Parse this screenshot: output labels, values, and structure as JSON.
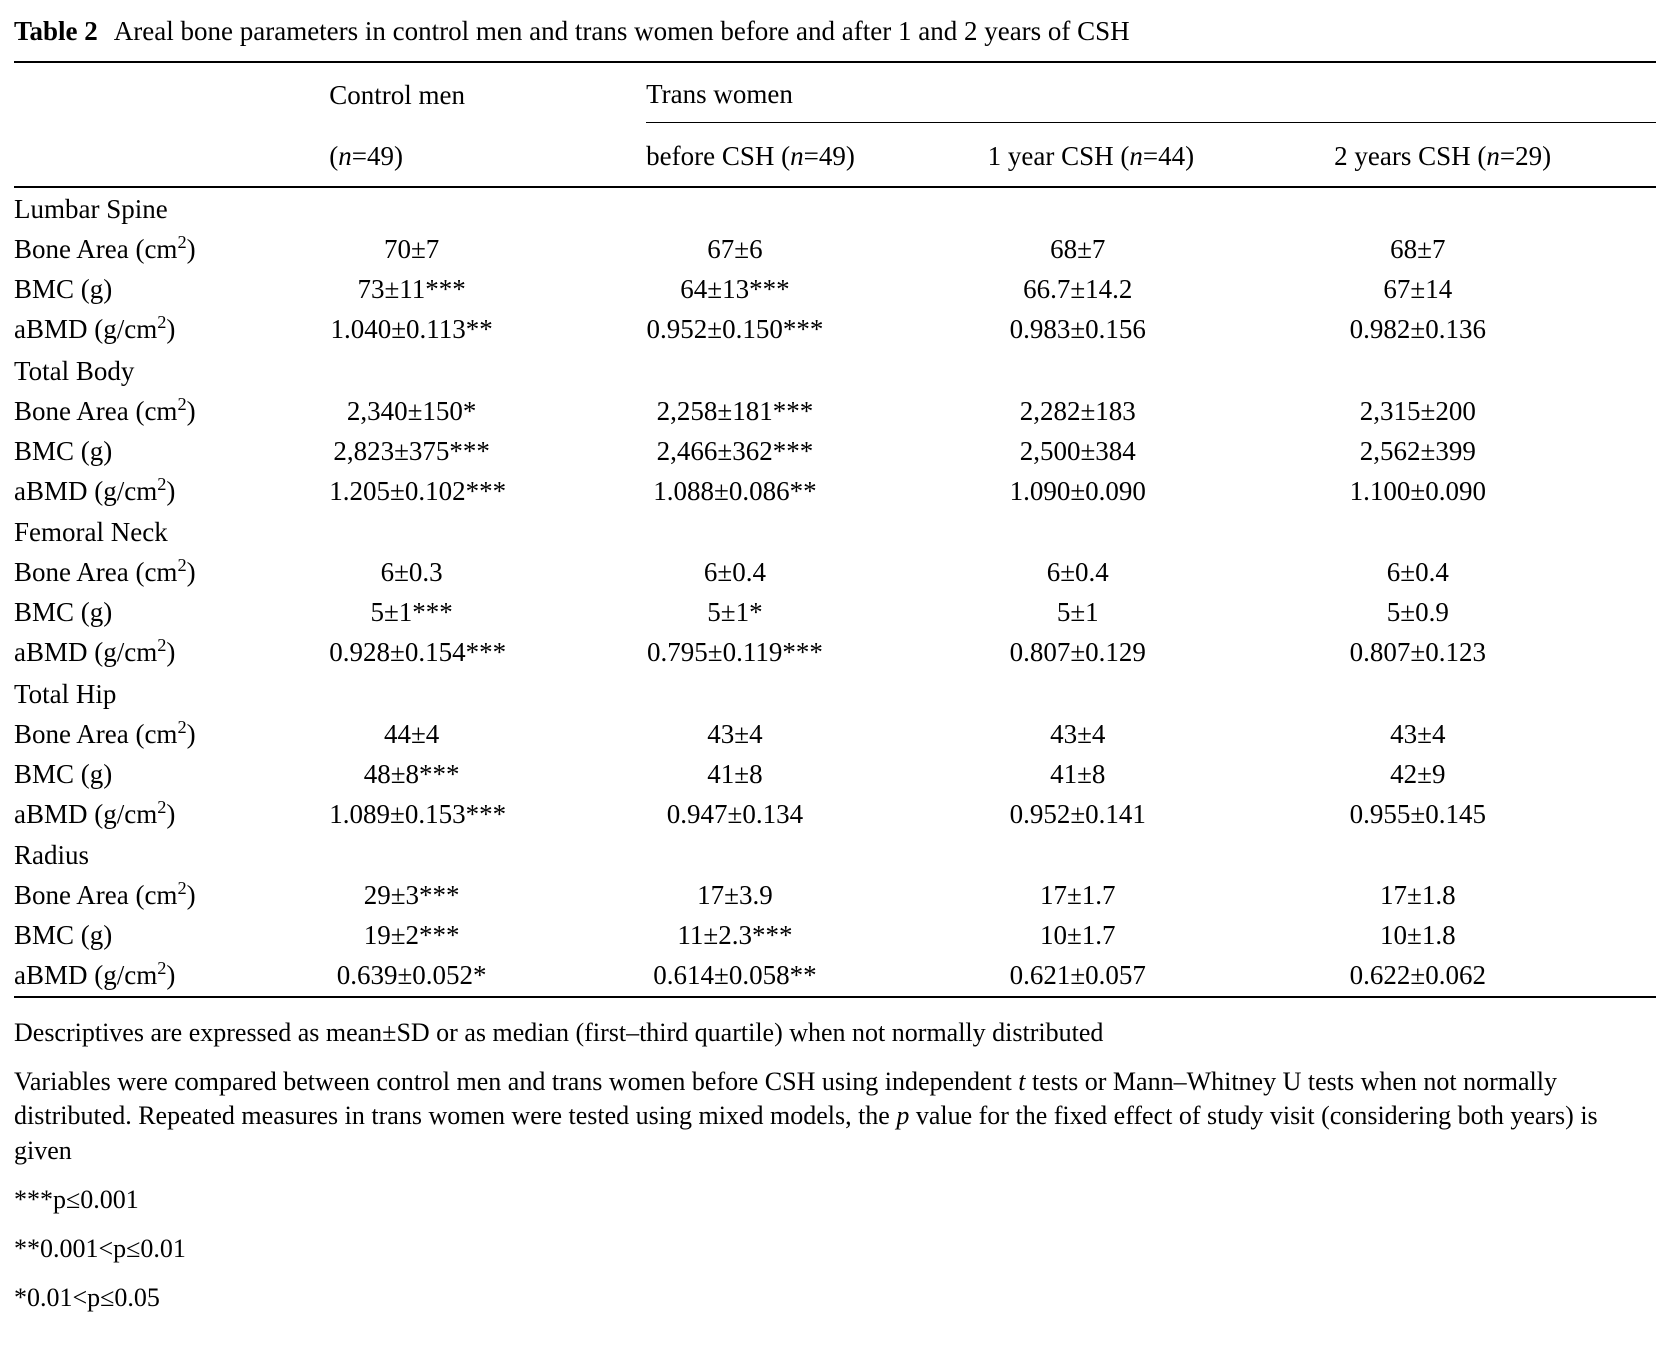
{
  "title": {
    "label": "Table 2",
    "text": "Areal bone parameters in control men and trans women before and after 1 and 2 years of CSH"
  },
  "table": {
    "groups": {
      "control": "Control men",
      "trans": "Trans women"
    },
    "sub_headers": [
      "(<i>n</i>=49)",
      "before CSH (<i>n</i>=49)",
      "1 year CSH (<i>n</i>=44)",
      "2 years CSH (<i>n</i>=29)"
    ],
    "sections": [
      {
        "name": "Lumbar Spine",
        "rows": [
          {
            "label": "Bone Area (cm<sup>2</sup>)",
            "values": [
              "70±7",
              "67±6",
              "68±7",
              "68±7"
            ]
          },
          {
            "label": "BMC (g)",
            "values": [
              "73±11***",
              "64±13***",
              "66.7±14.2",
              "67±14"
            ]
          },
          {
            "label": "aBMD (g/cm<sup>2</sup>)",
            "values": [
              "1.040±0.113**",
              "0.952±0.150***",
              "0.983±0.156",
              "0.982±0.136"
            ]
          }
        ]
      },
      {
        "name": "Total Body",
        "rows": [
          {
            "label": "Bone Area (cm<sup>2</sup>)",
            "values": [
              "2,340±150*",
              "2,258±181***",
              "2,282±183",
              "2,315±200"
            ]
          },
          {
            "label": "BMC (g)",
            "values": [
              "2,823±375***",
              "2,466±362***",
              "2,500±384",
              "2,562±399"
            ]
          },
          {
            "label": "aBMD (g/cm<sup>2</sup>)",
            "values": [
              "1.205±0.102***",
              "1.088±0.086**",
              "1.090±0.090",
              "1.100±0.090"
            ]
          }
        ]
      },
      {
        "name": "Femoral Neck",
        "rows": [
          {
            "label": "Bone Area (cm<sup>2</sup>)",
            "values": [
              "6±0.3",
              "6±0.4",
              "6±0.4",
              "6±0.4"
            ]
          },
          {
            "label": "BMC (g)",
            "values": [
              "5±1***",
              "5±1*",
              "5±1",
              "5±0.9"
            ]
          },
          {
            "label": "aBMD (g/cm<sup>2</sup>)",
            "values": [
              "0.928±0.154***",
              "0.795±0.119***",
              "0.807±0.129",
              "0.807±0.123"
            ]
          }
        ]
      },
      {
        "name": "Total Hip",
        "rows": [
          {
            "label": "Bone Area (cm<sup>2</sup>)",
            "values": [
              "44±4",
              "43±4",
              "43±4",
              "43±4"
            ]
          },
          {
            "label": "BMC (g)",
            "values": [
              "48±8***",
              "41±8",
              "41±8",
              "42±9"
            ]
          },
          {
            "label": "aBMD (g/cm<sup>2</sup>)",
            "values": [
              "1.089±0.153***",
              "0.947±0.134",
              "0.952±0.141",
              "0.955±0.145"
            ]
          }
        ]
      },
      {
        "name": "Radius",
        "rows": [
          {
            "label": "Bone Area (cm<sup>2</sup>)",
            "values": [
              "29±3***",
              "17±3.9",
              "17±1.7",
              "17±1.8"
            ]
          },
          {
            "label": "BMC (g)",
            "values": [
              "19±2***",
              "11±2.3***",
              "10±1.7",
              "10±1.8"
            ]
          },
          {
            "label": "aBMD (g/cm<sup>2</sup>)",
            "values": [
              "0.639±0.052*",
              "0.614±0.058**",
              "0.621±0.057",
              "0.622±0.062"
            ]
          }
        ]
      }
    ]
  },
  "footnotes": {
    "descriptives": "Descriptives are expressed as mean±SD or as median (first–third quartile) when not normally distributed",
    "methods_html": "Variables were compared between control men and trans women before CSH using independent <i>t</i> tests or Mann–Whitney U tests when not normally distributed. Repeated measures in trans women were tested using mixed models, the <i>p</i> value for the fixed effect of study visit (considering both years) is given",
    "sig_001": "***p≤0.001",
    "sig_01": "**0.001<p≤0.01",
    "sig_05": "*0.01<p≤0.05"
  }
}
